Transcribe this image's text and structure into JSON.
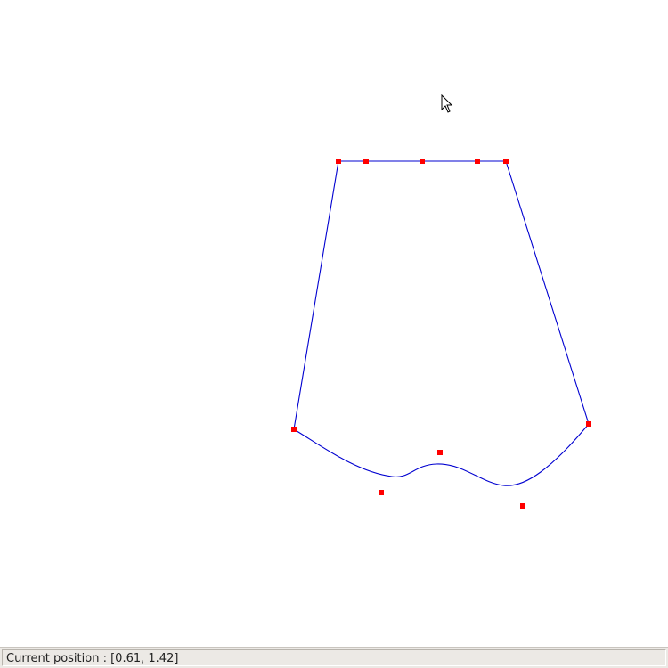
{
  "statusbar": {
    "label": "Current position :",
    "position_value": "[0.61, 1.42]"
  },
  "colors": {
    "curve": "#0000d0",
    "control_point": "#ff0000",
    "canvas_bg": "#ffffff",
    "statusbar_bg": "#ece9e5"
  },
  "cursor": {
    "icon": "arrow-pointer-icon"
  }
}
